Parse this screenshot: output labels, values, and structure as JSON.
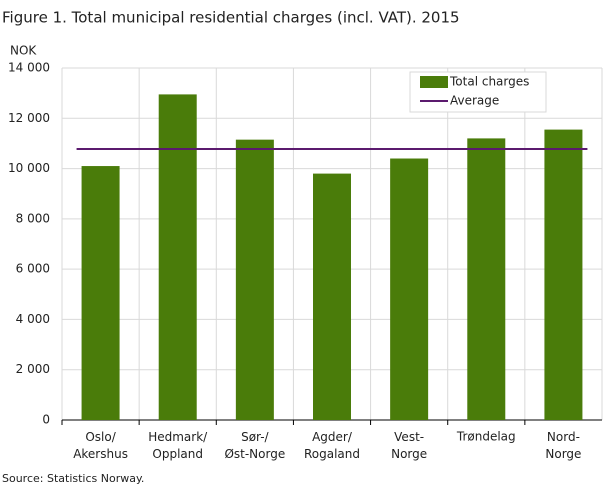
{
  "chart_data": {
    "type": "bar",
    "title": "Figure 1. Total municipal residential charges (incl. VAT). 2015",
    "y_label": "NOK",
    "source": "Source: Statistics Norway.",
    "categories": [
      "Oslo/\nAkershus",
      "Hedmark/\nOppland",
      "Sør-/\nØst-Norge",
      "Agder/\nRogaland",
      "Vest-\nNorge",
      "Trøndelag",
      "Nord-\nNorge"
    ],
    "series": [
      {
        "name": "Total charges",
        "color": "#4a7c0a",
        "values": [
          10100,
          12950,
          11150,
          9800,
          10400,
          11200,
          11550
        ]
      }
    ],
    "average": {
      "name": "Average",
      "color": "#5b1a6e",
      "value": 10780
    },
    "ylim": [
      0,
      14000
    ],
    "yticks": [
      0,
      {
        "value": 2000,
        "label": "2 000"
      },
      {
        "value": 4000,
        "label": "4 000"
      },
      {
        "value": 6000,
        "label": "6 000"
      },
      {
        "value": 8000,
        "label": "8 000"
      },
      {
        "value": 10000,
        "label": "10 000"
      },
      {
        "value": 12000,
        "label": "12 000"
      },
      {
        "value": 14000,
        "label": "14 000"
      }
    ],
    "grid": true,
    "legend": "top-right"
  }
}
